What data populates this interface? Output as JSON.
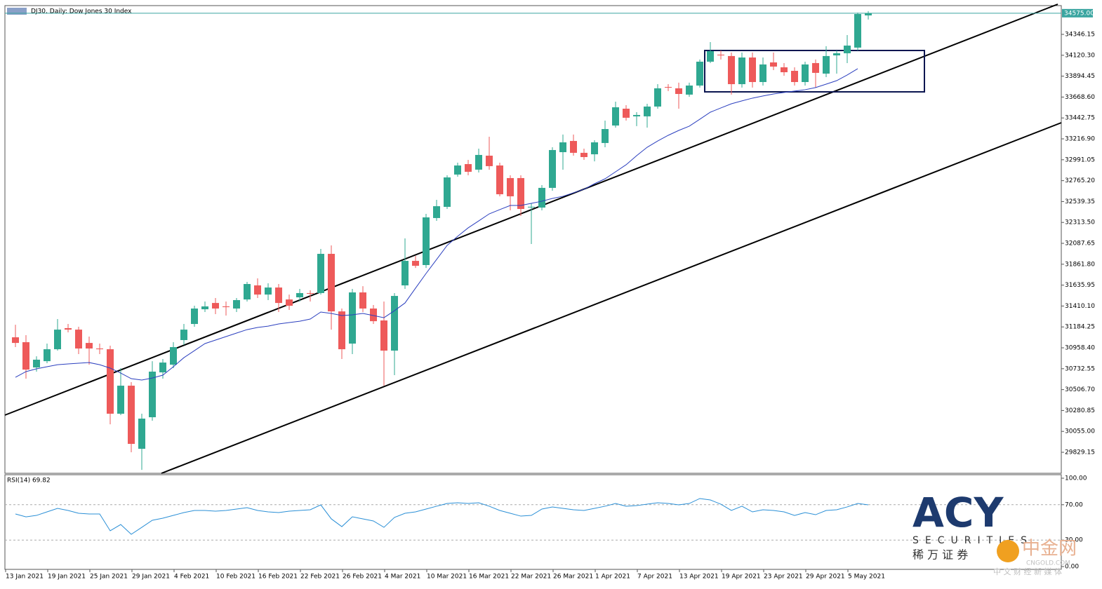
{
  "chart_data": {
    "type": "candlestick",
    "title": "DJ30, Daily:  Dow Jones 30 Index",
    "categories": [
      "13 Jan 2021",
      null,
      null,
      null,
      "19 Jan 2021",
      null,
      null,
      null,
      "25 Jan 2021",
      null,
      null,
      null,
      "29 Jan 2021",
      null,
      null,
      null,
      "4 Feb 2021",
      null,
      null,
      null,
      "10 Feb 2021",
      null,
      null,
      null,
      "16 Feb 2021",
      null,
      null,
      null,
      "22 Feb 2021",
      null,
      null,
      null,
      "26 Feb 2021",
      null,
      null,
      null,
      "4 Mar 2021",
      null,
      null,
      null,
      "10 Mar 2021",
      null,
      null,
      null,
      "16 Mar 2021",
      null,
      null,
      null,
      "22 Mar 2021",
      null,
      null,
      null,
      "26 Mar 2021",
      null,
      null,
      null,
      "1 Apr 2021",
      null,
      null,
      null,
      "7 Apr 2021",
      null,
      null,
      null,
      "13 Apr 2021",
      null,
      null,
      null,
      "19 Apr 2021",
      null,
      null,
      null,
      "23 Apr 2021",
      null,
      null,
      null,
      "29 Apr 2021",
      null,
      null,
      null,
      "5 May 2021",
      null
    ],
    "open": [
      31072,
      31019,
      30746,
      30814,
      30943,
      31171,
      31155,
      31011,
      30951,
      30943,
      30246,
      30549,
      29867,
      30208,
      30693,
      30776,
      31042,
      31216,
      31375,
      31443,
      31406,
      31383,
      31481,
      31633,
      31534,
      31610,
      31481,
      31504,
      31550,
      31550,
      31974,
      31352,
      31004,
      31557,
      31383,
      31254,
      30928,
      31633,
      31898,
      31853,
      32361,
      32482,
      32831,
      32944,
      32884,
      33035,
      32929,
      32793,
      32793,
      32482,
      32474,
      32687,
      33073,
      33194,
      33066,
      33050,
      33172,
      33361,
      33543,
      33460,
      33460,
      33566,
      33778,
      33763,
      33695,
      33793,
      34051,
      34127,
      34112,
      33808,
      34096,
      33831,
      34043,
      33990,
      33952,
      33831,
      34036,
      33922,
      34119,
      34142,
      34203,
      34551
    ],
    "high": [
      31208,
      31095,
      30867,
      31004,
      31269,
      31216,
      31186,
      31080,
      31004,
      30981,
      30739,
      30587,
      30246,
      30814,
      30837,
      31019,
      31216,
      31413,
      31459,
      31497,
      31459,
      31497,
      31671,
      31709,
      31656,
      31648,
      31534,
      31595,
      31580,
      32027,
      32065,
      31383,
      31595,
      31625,
      31421,
      31459,
      31550,
      32141,
      31951,
      32406,
      32558,
      32823,
      32959,
      32990,
      33111,
      33240,
      32959,
      32823,
      32823,
      32520,
      32717,
      33126,
      33263,
      33263,
      33111,
      33202,
      33414,
      33619,
      33581,
      33505,
      33596,
      33808,
      33808,
      33824,
      33824,
      34074,
      34263,
      34172,
      34150,
      34150,
      34150,
      34096,
      34150,
      34036,
      33990,
      34051,
      34074,
      34218,
      34172,
      34339,
      34581,
      34597
    ],
    "low": [
      30966,
      30625,
      30701,
      30792,
      30928,
      31125,
      30890,
      30776,
      30890,
      30132,
      30231,
      29829,
      29639,
      30170,
      30625,
      30739,
      30989,
      31186,
      31345,
      31322,
      31307,
      31345,
      31459,
      31497,
      31474,
      31345,
      31368,
      31459,
      31459,
      31534,
      31155,
      30837,
      30890,
      31345,
      31216,
      30549,
      30663,
      31595,
      31822,
      31822,
      32330,
      32459,
      32808,
      32823,
      32853,
      32884,
      32596,
      32444,
      32383,
      32080,
      32444,
      32656,
      32884,
      33035,
      32990,
      32974,
      33126,
      33338,
      33414,
      33354,
      33338,
      33543,
      33733,
      33543,
      33672,
      33771,
      34036,
      34074,
      33695,
      33771,
      33771,
      33793,
      33960,
      33899,
      33793,
      33793,
      33771,
      33884,
      33922,
      34036,
      34172,
      34506
    ],
    "close": [
      31011,
      30723,
      30830,
      30943,
      31155,
      31155,
      30951,
      30951,
      30943,
      30246,
      30549,
      29920,
      30193,
      30701,
      30799,
      30966,
      31155,
      31383,
      31406,
      31383,
      31398,
      31474,
      31648,
      31534,
      31610,
      31443,
      31413,
      31550,
      31549,
      31974,
      31352,
      30943,
      31557,
      31383,
      31246,
      30928,
      31519,
      31898,
      31845,
      32368,
      32489,
      32800,
      32929,
      32861,
      33043,
      32922,
      32618,
      32596,
      32459,
      32483,
      32687,
      33096,
      33179,
      33066,
      33020,
      33179,
      33323,
      33558,
      33445,
      33475,
      33566,
      33763,
      33771,
      33702,
      33793,
      34051,
      34165,
      34119,
      33808,
      34096,
      33831,
      34021,
      33998,
      33937,
      33831,
      34021,
      33930,
      34112,
      34142,
      34225,
      34566,
      34575
    ],
    "up_color": "#2fa891",
    "down_color": "#ee5a5a",
    "ma": {
      "color": "#2b3fbf",
      "values": [
        30640,
        30701,
        30731,
        30754,
        30776,
        30784,
        30792,
        30799,
        30776,
        30739,
        30685,
        30625,
        30610,
        30632,
        30663,
        30754,
        30852,
        30928,
        31004,
        31042,
        31080,
        31118,
        31155,
        31178,
        31193,
        31216,
        31231,
        31246,
        31269,
        31345,
        31330,
        31307,
        31315,
        31330,
        31307,
        31284,
        31360,
        31443,
        31603,
        31762,
        31913,
        32065,
        32164,
        32255,
        32330,
        32406,
        32452,
        32497,
        32497,
        32520,
        32543,
        32573,
        32596,
        32634,
        32672,
        32732,
        32785,
        32861,
        32937,
        33035,
        33126,
        33194,
        33255,
        33308,
        33354,
        33429,
        33505,
        33551,
        33596,
        33627,
        33657,
        33680,
        33702,
        33718,
        33733,
        33748,
        33771,
        33808,
        33846,
        33907,
        33975,
        null
      ]
    },
    "last_price": {
      "value": 34575,
      "label": "34575.00"
    },
    "ylim": [
      29602,
      34657
    ],
    "yticks": [
      {
        "value": 29829.15,
        "label": "29829.15"
      },
      {
        "value": 30055,
        "label": "30055.00"
      },
      {
        "value": 30280.85,
        "label": "30280.85"
      },
      {
        "value": 30506.7,
        "label": "30506.70"
      },
      {
        "value": 30732.55,
        "label": "30732.55"
      },
      {
        "value": 30958.4,
        "label": "30958.40"
      },
      {
        "value": 31184.25,
        "label": "31184.25"
      },
      {
        "value": 31410.1,
        "label": "31410.10"
      },
      {
        "value": 31635.95,
        "label": "31635.95"
      },
      {
        "value": 31861.8,
        "label": "31861.80"
      },
      {
        "value": 32087.65,
        "label": "32087.65"
      },
      {
        "value": 32313.5,
        "label": "32313.50"
      },
      {
        "value": 32539.35,
        "label": "32539.35"
      },
      {
        "value": 32765.2,
        "label": "32765.20"
      },
      {
        "value": 32991.05,
        "label": "32991.05"
      },
      {
        "value": 33216.9,
        "label": "33216.90"
      },
      {
        "value": 33442.75,
        "label": "33442.75"
      },
      {
        "value": 33668.6,
        "label": "33668.60"
      },
      {
        "value": 33894.45,
        "label": "33894.45"
      },
      {
        "value": 34120.3,
        "label": "34120.30"
      },
      {
        "value": 34346.15,
        "label": "34346.15"
      }
    ],
    "rsi": {
      "label": "RSI(14) 69.82",
      "color": "#2a8fd6",
      "values": [
        59.5,
        56.3,
        57.9,
        61.9,
        65.9,
        63.5,
        60.3,
        59.5,
        59.5,
        40.5,
        47.6,
        36.5,
        44.4,
        52.4,
        54.8,
        57.9,
        61.1,
        63.5,
        63.5,
        62.7,
        63.5,
        65.1,
        66.7,
        63.5,
        61.9,
        61.1,
        62.7,
        63.5,
        64.3,
        69.8,
        54.0,
        45.2,
        56.3,
        54.0,
        51.6,
        44.4,
        55.6,
        60.3,
        61.9,
        65.1,
        68.3,
        71.4,
        72.2,
        71.4,
        72.2,
        68.3,
        63.5,
        60.3,
        57.1,
        57.9,
        65.1,
        67.5,
        65.9,
        64.3,
        63.5,
        65.9,
        68.3,
        71.4,
        68.3,
        69.0,
        70.6,
        72.2,
        71.4,
        69.8,
        71.4,
        77.0,
        75.4,
        70.6,
        63.5,
        68.3,
        61.9,
        64.3,
        63.5,
        61.9,
        57.9,
        61.1,
        58.7,
        63.5,
        64.3,
        67.5,
        71.4,
        69.82
      ],
      "ylim": [
        0,
        100
      ],
      "yticks": [
        {
          "value": 100,
          "label": "100.00"
        },
        {
          "value": 70,
          "label": "70.00"
        },
        {
          "value": 30,
          "label": "30.00"
        },
        {
          "value": 0,
          "label": "0.00"
        }
      ]
    }
  },
  "watermarks": {
    "broker": "ACY",
    "broker_sub": "SECURITIES",
    "broker_cn": "稀 万 证 券",
    "site": "中金网",
    "site_url": "CNGOLD.COM",
    "site_cn": "中 文 财 经 新 媒 体"
  }
}
